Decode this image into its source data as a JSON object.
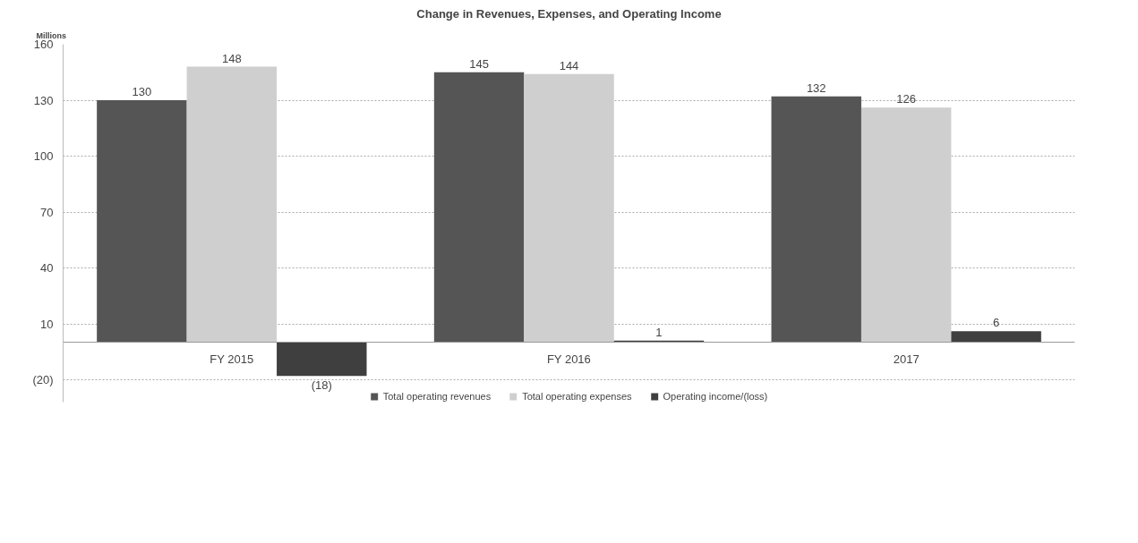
{
  "chart_data": {
    "type": "bar",
    "title": "Change in Revenues, Expenses, and Operating Income",
    "ylabel": "Millions",
    "categories": [
      "FY 2015",
      "FY 2016",
      "2017"
    ],
    "series": [
      {
        "name": "Total operating revenues",
        "color": "#555555",
        "values": [
          130,
          145,
          132
        ],
        "value_labels": [
          "130",
          "145",
          "132"
        ]
      },
      {
        "name": "Total operating expenses",
        "color": "#cfcfcf",
        "values": [
          148,
          144,
          126
        ],
        "value_labels": [
          "148",
          "144",
          "126"
        ]
      },
      {
        "name": "Operating income/(loss)",
        "color": "#3f3f3f",
        "values": [
          -18,
          1,
          6
        ],
        "value_labels": [
          "(18)",
          "1",
          "6"
        ]
      }
    ],
    "ylim": [
      -32,
      160
    ],
    "yticks": [
      {
        "value": -20,
        "label": "(20)"
      },
      10,
      40,
      70,
      100,
      130,
      160
    ],
    "grid": "y",
    "legend": "bottom"
  }
}
